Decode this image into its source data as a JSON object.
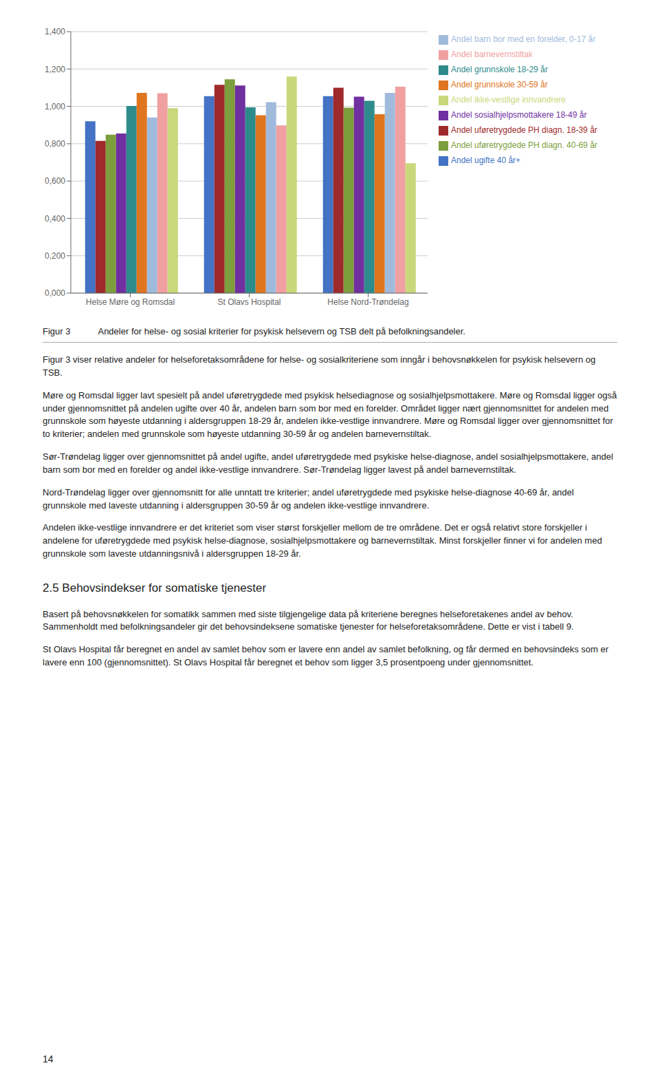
{
  "chart_data": {
    "type": "bar",
    "title": "Figur 3",
    "subtitle": "Andeler for helse- og sosial kriterier for psykisk helsevern og TSB delt på befolkningsandeler.",
    "categories": [
      "Helse Møre og Romsdal",
      "St Olavs Hospital",
      "Helse Nord-Trøndelag"
    ],
    "series": [
      {
        "name": "Andel ugifte 40 år+",
        "color": "#4472C4",
        "values": [
          0.92,
          1.055,
          1.055
        ]
      },
      {
        "name": "Andel uføretrygdede PH diagn. 18-39 år",
        "color": "#9E2A2B",
        "values": [
          0.815,
          1.115,
          1.1
        ]
      },
      {
        "name": "Andel uføretrygdede PH diagn. 40-69 år",
        "color": "#7D9E3C",
        "values": [
          0.848,
          1.145,
          0.993
        ]
      },
      {
        "name": "Andel sosialhjelpsmottakere  18-49 år",
        "color": "#7030A0",
        "values": [
          0.855,
          1.112,
          1.052
        ]
      },
      {
        "name": "Andel grunnskole 18-29 år",
        "color": "#2E8B8B",
        "values": [
          1.002,
          0.995,
          1.03
        ]
      },
      {
        "name": "Andel grunnskole 30-59 år",
        "color": "#E07520",
        "values": [
          1.072,
          0.952,
          0.958
        ]
      },
      {
        "name": "Andel barn bor med en forelder, 0-17 år",
        "color": "#A0BADC",
        "values": [
          0.94,
          1.022,
          1.072
        ]
      },
      {
        "name": "Andel barnevernstiltak",
        "color": "#F0A0A0",
        "values": [
          1.07,
          0.898,
          1.105
        ]
      },
      {
        "name": "Andel ikke-vestlige innvandrere",
        "color": "#C8D87A",
        "values": [
          0.99,
          1.16,
          0.695
        ]
      }
    ],
    "ylim": [
      0,
      1.4
    ],
    "yticks": [
      {
        "value": 0,
        "label": "0,000"
      },
      {
        "value": 0.2,
        "label": "0,200"
      },
      {
        "value": 0.4,
        "label": "0,400"
      },
      {
        "value": 0.6,
        "label": "0,600"
      },
      {
        "value": 0.8,
        "label": "0,800"
      },
      {
        "value": 1.0,
        "label": "1,000"
      },
      {
        "value": 1.2,
        "label": "1,200"
      },
      {
        "value": 1.4,
        "label": "1,400"
      }
    ],
    "grid": true,
    "legend": "right",
    "annotations": [
      "Figur 3 viser relative andeler for helseforetaksområdene for helse- og sosialkriteriene som inngår i behovsnøkkelen for psykisk helsevern og TSB.",
      "Møre og Romsdal ligger lavt spesielt på andel uføretrygdede med psykisk helsediagnose og sosialhjelpsmottakere. Møre og Romsdal ligger også under gjennomsnittet på andelen ugifte over 40 år, andelen barn som bor med en forelder. Området ligger nært gjennomsnittet for andelen med grunnskole som høyeste utdanning i aldersgruppen 18-29 år, andelen ikke-vestlige innvandrere. Møre og Romsdal ligger over gjennomsnittet for to kriterier; andelen med grunnskole som høyeste utdanning 30-59 år og andelen barnevernstiltak.",
      "Sør-Trøndelag ligger over gjennomsnittet på andel ugifte, andel uføretrygdede med psykiske helse-diagnose, andel sosialhjelpsmottakere, andel barn som bor med en forelder og andel ikke-vestlige innvandrere. Sør-Trøndelag ligger lavest på andel barnevernstiltak.",
      "Nord-Trøndelag ligger over gjennomsnitt for alle unntatt tre kriterier; andel uføretrygdede med psykiske helse-diagnose 40-69 år, andel grunnskole med laveste utdanning i aldersgruppen 30-59 år og andelen ikke-vestlige innvandrere.",
      "Andelen ikke-vestlige innvandrere er det kriteriet som viser størst forskjeller mellom de tre områdene. Det er også relativt store forskjeller i andelene for uføretrygdede med psykisk helse-diagnose, sosialhjelpsmottakere og barnevernstiltak. Minst forskjeller finner vi for andelen med grunnskole som laveste utdanningsnivå i aldersgruppen 18-29 år.",
      "2.5 Behovsindekser for somatiske tjenester",
      "Basert på behovsnøkkelen for somatikk sammen med siste tilgjengelige data på kriteriene beregnes helseforetakenes andel av behov. Sammenholdt med befolkningsandeler gir det behovsindeksene somatiske tjenester for helseforetaksområdene. Dette er vist i tabell 9.",
      "St Olavs Hospital får beregnet en andel av samlet behov som er lavere enn andel av samlet befolkning, og får dermed en behovsindeks som er lavere enn 100 (gjennomsnittet). St Olavs Hospital får beregnet et behov som ligger 3,5 prosentpoeng under gjennomsnittet.",
      "14"
    ]
  }
}
